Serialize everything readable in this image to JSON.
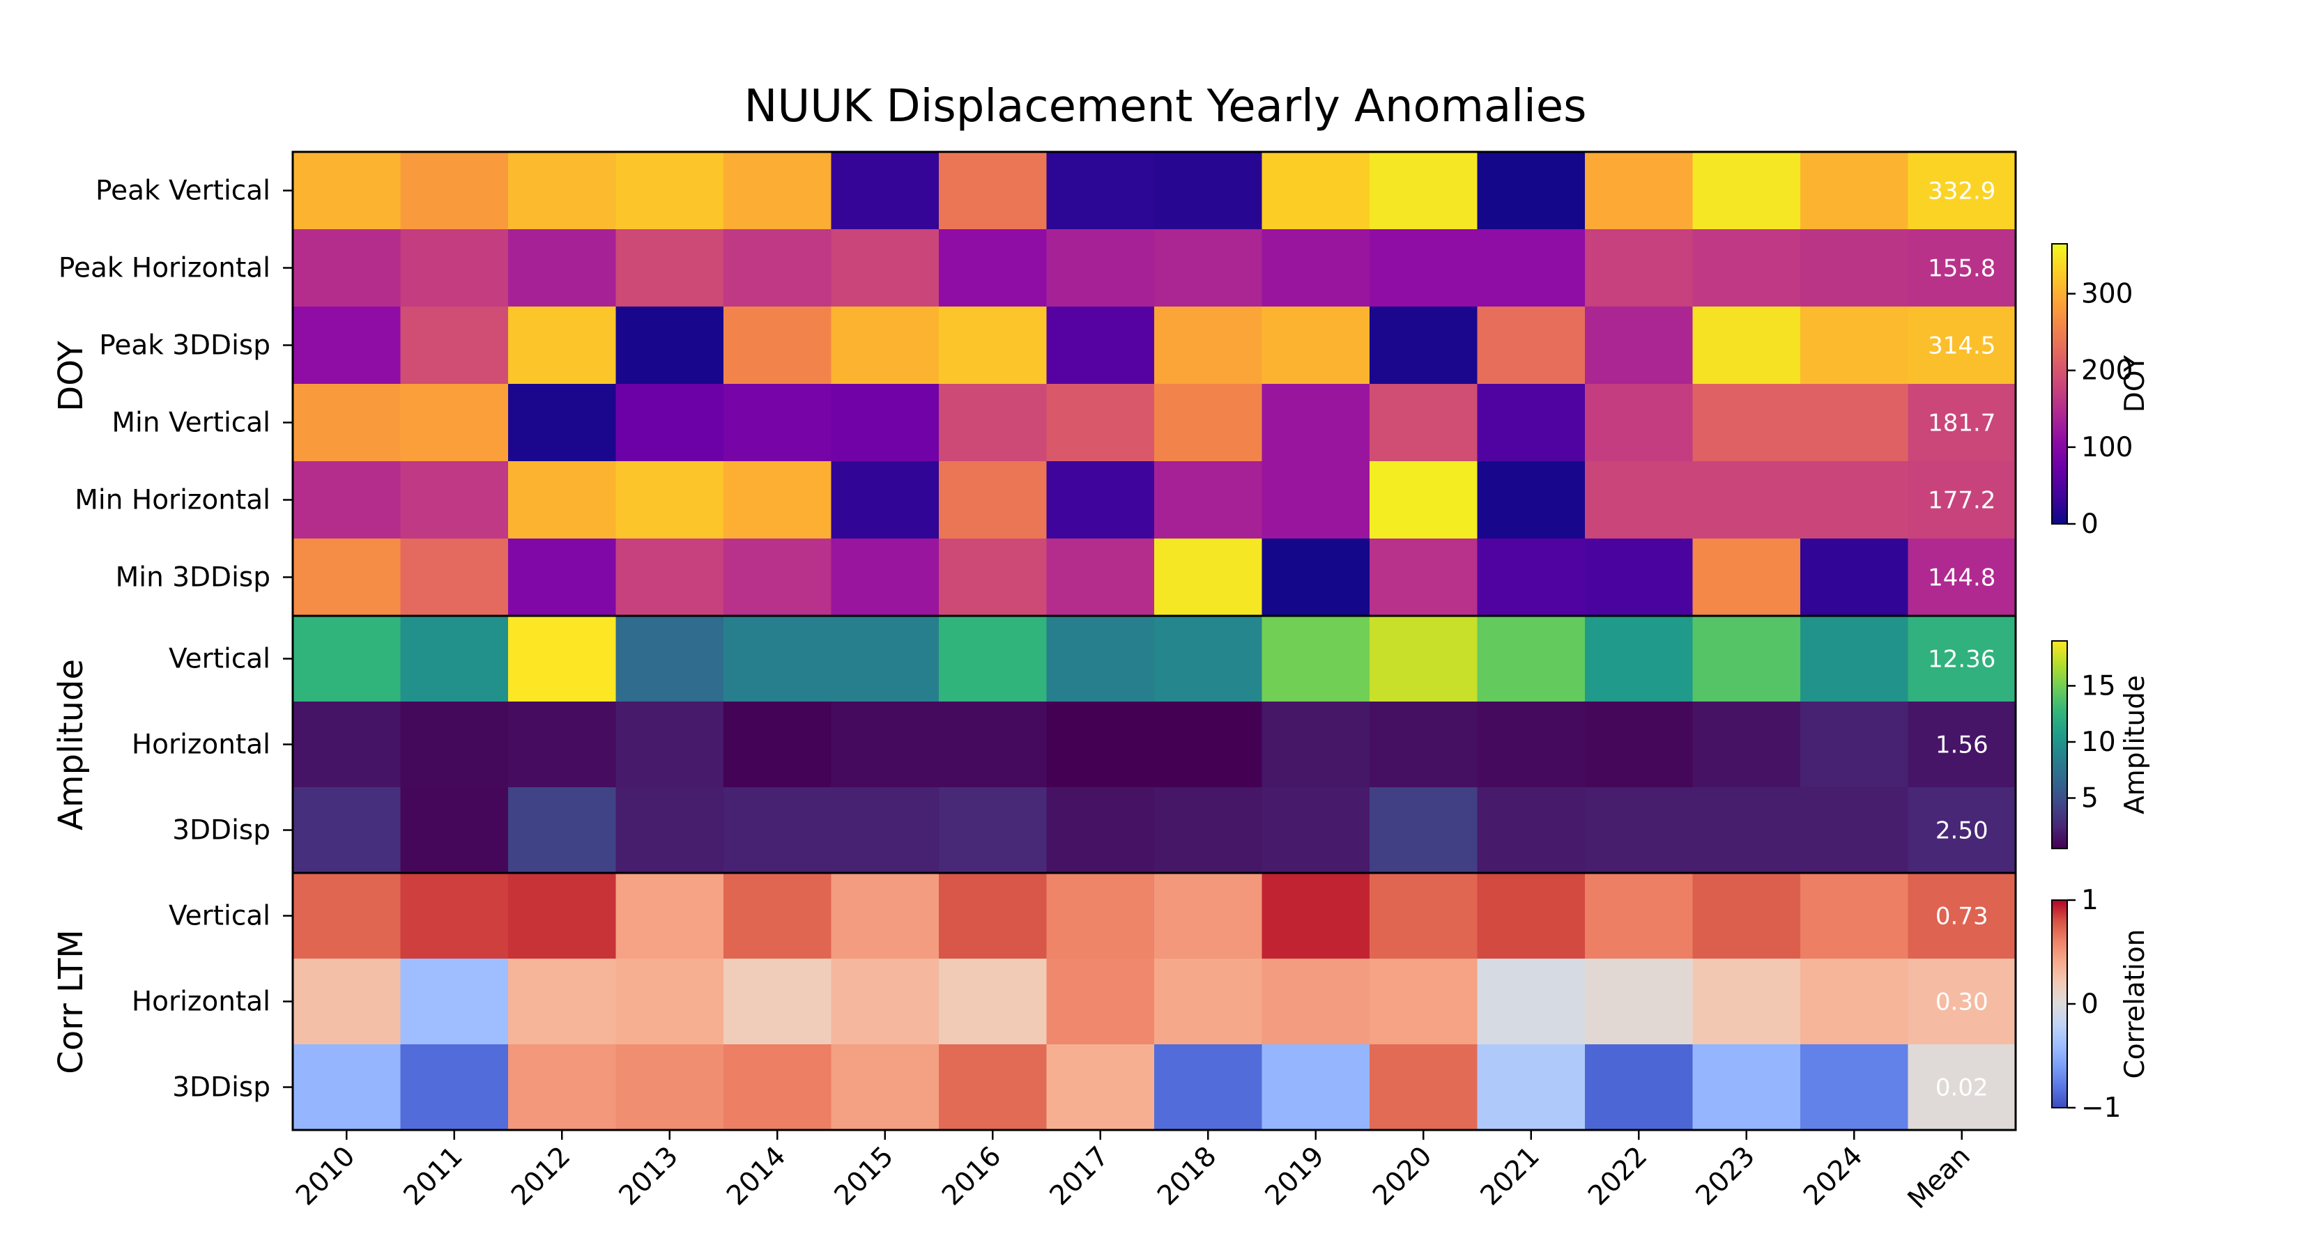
{
  "chart_data": {
    "type": "heatmap",
    "title": "NUUK Displacement Yearly Anomalies",
    "columns": [
      "2010",
      "2011",
      "2012",
      "2013",
      "2014",
      "2015",
      "2016",
      "2017",
      "2018",
      "2019",
      "2020",
      "2021",
      "2022",
      "2023",
      "2024",
      "Mean"
    ],
    "panels": [
      {
        "group_label": "DOY",
        "colormap": "plasma",
        "colorbar": {
          "label": "DOY",
          "vmin": 0,
          "vmax": 365,
          "ticks": [
            0,
            100,
            200,
            300
          ]
        },
        "rows": [
          {
            "label": "Peak Vertical",
            "values": [
              305,
              280,
              310,
              320,
              298,
              28,
              240,
              22,
              18,
              328,
              350,
              5,
              295,
              350,
              305
            ],
            "mean_label": "332.9",
            "mean": 332.9
          },
          {
            "label": "Peak Horizontal",
            "values": [
              150,
              170,
              135,
              185,
              165,
              180,
              110,
              135,
              140,
              120,
              110,
              110,
              175,
              165,
              160
            ],
            "mean_label": "155.8",
            "mean": 155.8
          },
          {
            "label": "Peak 3DDisp",
            "values": [
              110,
              190,
              320,
              8,
              255,
              305,
              320,
              55,
              290,
              305,
              10,
              230,
              140,
              345,
              310
            ],
            "mean_label": "314.5",
            "mean": 314.5
          },
          {
            "label": "Min Vertical",
            "values": [
              280,
              285,
              10,
              75,
              85,
              80,
              185,
              205,
              255,
              120,
              190,
              50,
              170,
              215,
              215
            ],
            "mean_label": "181.7",
            "mean": 181.7
          },
          {
            "label": "Min Horizontal",
            "values": [
              150,
              165,
              305,
              320,
              300,
              25,
              240,
              35,
              135,
              120,
              355,
              8,
              180,
              180,
              180
            ],
            "mean_label": "177.2",
            "mean": 177.2
          },
          {
            "label": "Min 3DDisp",
            "values": [
              265,
              225,
              95,
              175,
              155,
              120,
              185,
              150,
              350,
              5,
              155,
              50,
              45,
              260,
              25
            ],
            "mean_label": "144.8",
            "mean": 144.8
          }
        ]
      },
      {
        "group_label": "Amplitude",
        "colormap": "viridis",
        "colorbar": {
          "label": "Amplitude",
          "vmin": 0.5,
          "vmax": 19,
          "ticks": [
            5,
            10,
            15
          ]
        },
        "rows": [
          {
            "label": "Vertical",
            "values": [
              12.5,
              9.8,
              19,
              7.0,
              8.5,
              8.5,
              12.5,
              8.5,
              9.0,
              15.0,
              17.5,
              14.5,
              10.5,
              14.0,
              10.0
            ],
            "mean_label": "12.36",
            "mean": 12.36
          },
          {
            "label": "Horizontal",
            "values": [
              1.5,
              0.9,
              1.1,
              1.8,
              0.6,
              1.0,
              1.0,
              0.5,
              0.5,
              1.6,
              1.3,
              1.0,
              0.8,
              1.4,
              2.2
            ],
            "mean_label": "1.56",
            "mean": 1.56
          },
          {
            "label": "3DDisp",
            "values": [
              3.0,
              0.8,
              4.2,
              2.0,
              2.2,
              2.2,
              2.6,
              1.4,
              1.6,
              1.8,
              4.0,
              1.8,
              2.0,
              2.0,
              2.0
            ],
            "mean_label": "2.50",
            "mean": 2.5
          }
        ]
      },
      {
        "group_label": "Corr LTM",
        "colormap": "coolwarm",
        "colorbar": {
          "label": "Correlation",
          "vmin": -1,
          "vmax": 1,
          "ticks": [
            -1,
            0,
            1
          ]
        },
        "rows": [
          {
            "label": "Vertical",
            "values": [
              0.72,
              0.85,
              0.88,
              0.45,
              0.72,
              0.48,
              0.78,
              0.6,
              0.5,
              0.92,
              0.72,
              0.82,
              0.62,
              0.75,
              0.62
            ],
            "mean_label": "0.73",
            "mean": 0.73
          },
          {
            "label": "Horizontal",
            "values": [
              0.28,
              -0.4,
              0.35,
              0.38,
              0.18,
              0.32,
              0.2,
              0.58,
              0.42,
              0.48,
              0.45,
              -0.05,
              0.05,
              0.22,
              0.35
            ],
            "mean_label": "0.30",
            "mean": 0.3
          },
          {
            "label": "3DDisp",
            "values": [
              -0.45,
              -0.85,
              0.5,
              0.55,
              0.62,
              0.46,
              0.7,
              0.38,
              -0.85,
              -0.45,
              0.7,
              -0.3,
              -0.88,
              -0.45,
              -0.75
            ],
            "mean_label": "0.02",
            "mean": 0.02
          }
        ]
      }
    ]
  }
}
